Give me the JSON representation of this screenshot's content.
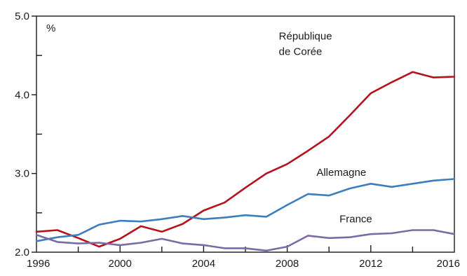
{
  "chart_data": {
    "type": "line",
    "unit_label": "%",
    "ylim": [
      2.0,
      5.0
    ],
    "y_ticks": [
      2.0,
      3.0,
      4.0,
      5.0
    ],
    "y_tick_labels": [
      "2.0",
      "3.0",
      "4.0",
      "5.0"
    ],
    "xlim": [
      1996,
      2016
    ],
    "x_ticks": [
      1996,
      2000,
      2004,
      2008,
      2012,
      2016
    ],
    "x_tick_labels": [
      "1996",
      "2000",
      "2004",
      "2008",
      "2012",
      "2016"
    ],
    "x": [
      1996,
      1997,
      1998,
      1999,
      2000,
      2001,
      2002,
      2003,
      2004,
      2005,
      2006,
      2007,
      2008,
      2009,
      2010,
      2011,
      2012,
      2013,
      2014,
      2015,
      2016
    ],
    "grid": false,
    "series": [
      {
        "name": "République de Corée",
        "name_lines": [
          "République",
          "de Corée"
        ],
        "color": "#b5121b",
        "values": [
          2.26,
          2.28,
          2.18,
          2.07,
          2.17,
          2.33,
          2.26,
          2.36,
          2.53,
          2.63,
          2.82,
          3.0,
          3.12,
          3.29,
          3.47,
          3.74,
          4.02,
          4.16,
          4.29,
          4.22,
          4.23
        ]
      },
      {
        "name": "Allemagne",
        "name_lines": [
          "Allemagne"
        ],
        "color": "#3d7ebf",
        "values": [
          2.14,
          2.19,
          2.22,
          2.35,
          2.4,
          2.39,
          2.42,
          2.46,
          2.42,
          2.44,
          2.47,
          2.45,
          2.6,
          2.74,
          2.72,
          2.81,
          2.87,
          2.83,
          2.87,
          2.91,
          2.93
        ]
      },
      {
        "name": "France",
        "name_lines": [
          "France"
        ],
        "color": "#7b6aa4",
        "values": [
          2.22,
          2.13,
          2.11,
          2.12,
          2.09,
          2.12,
          2.17,
          2.11,
          2.09,
          2.05,
          2.05,
          2.02,
          2.07,
          2.21,
          2.18,
          2.19,
          2.23,
          2.24,
          2.28,
          2.28,
          2.23
        ]
      }
    ]
  }
}
